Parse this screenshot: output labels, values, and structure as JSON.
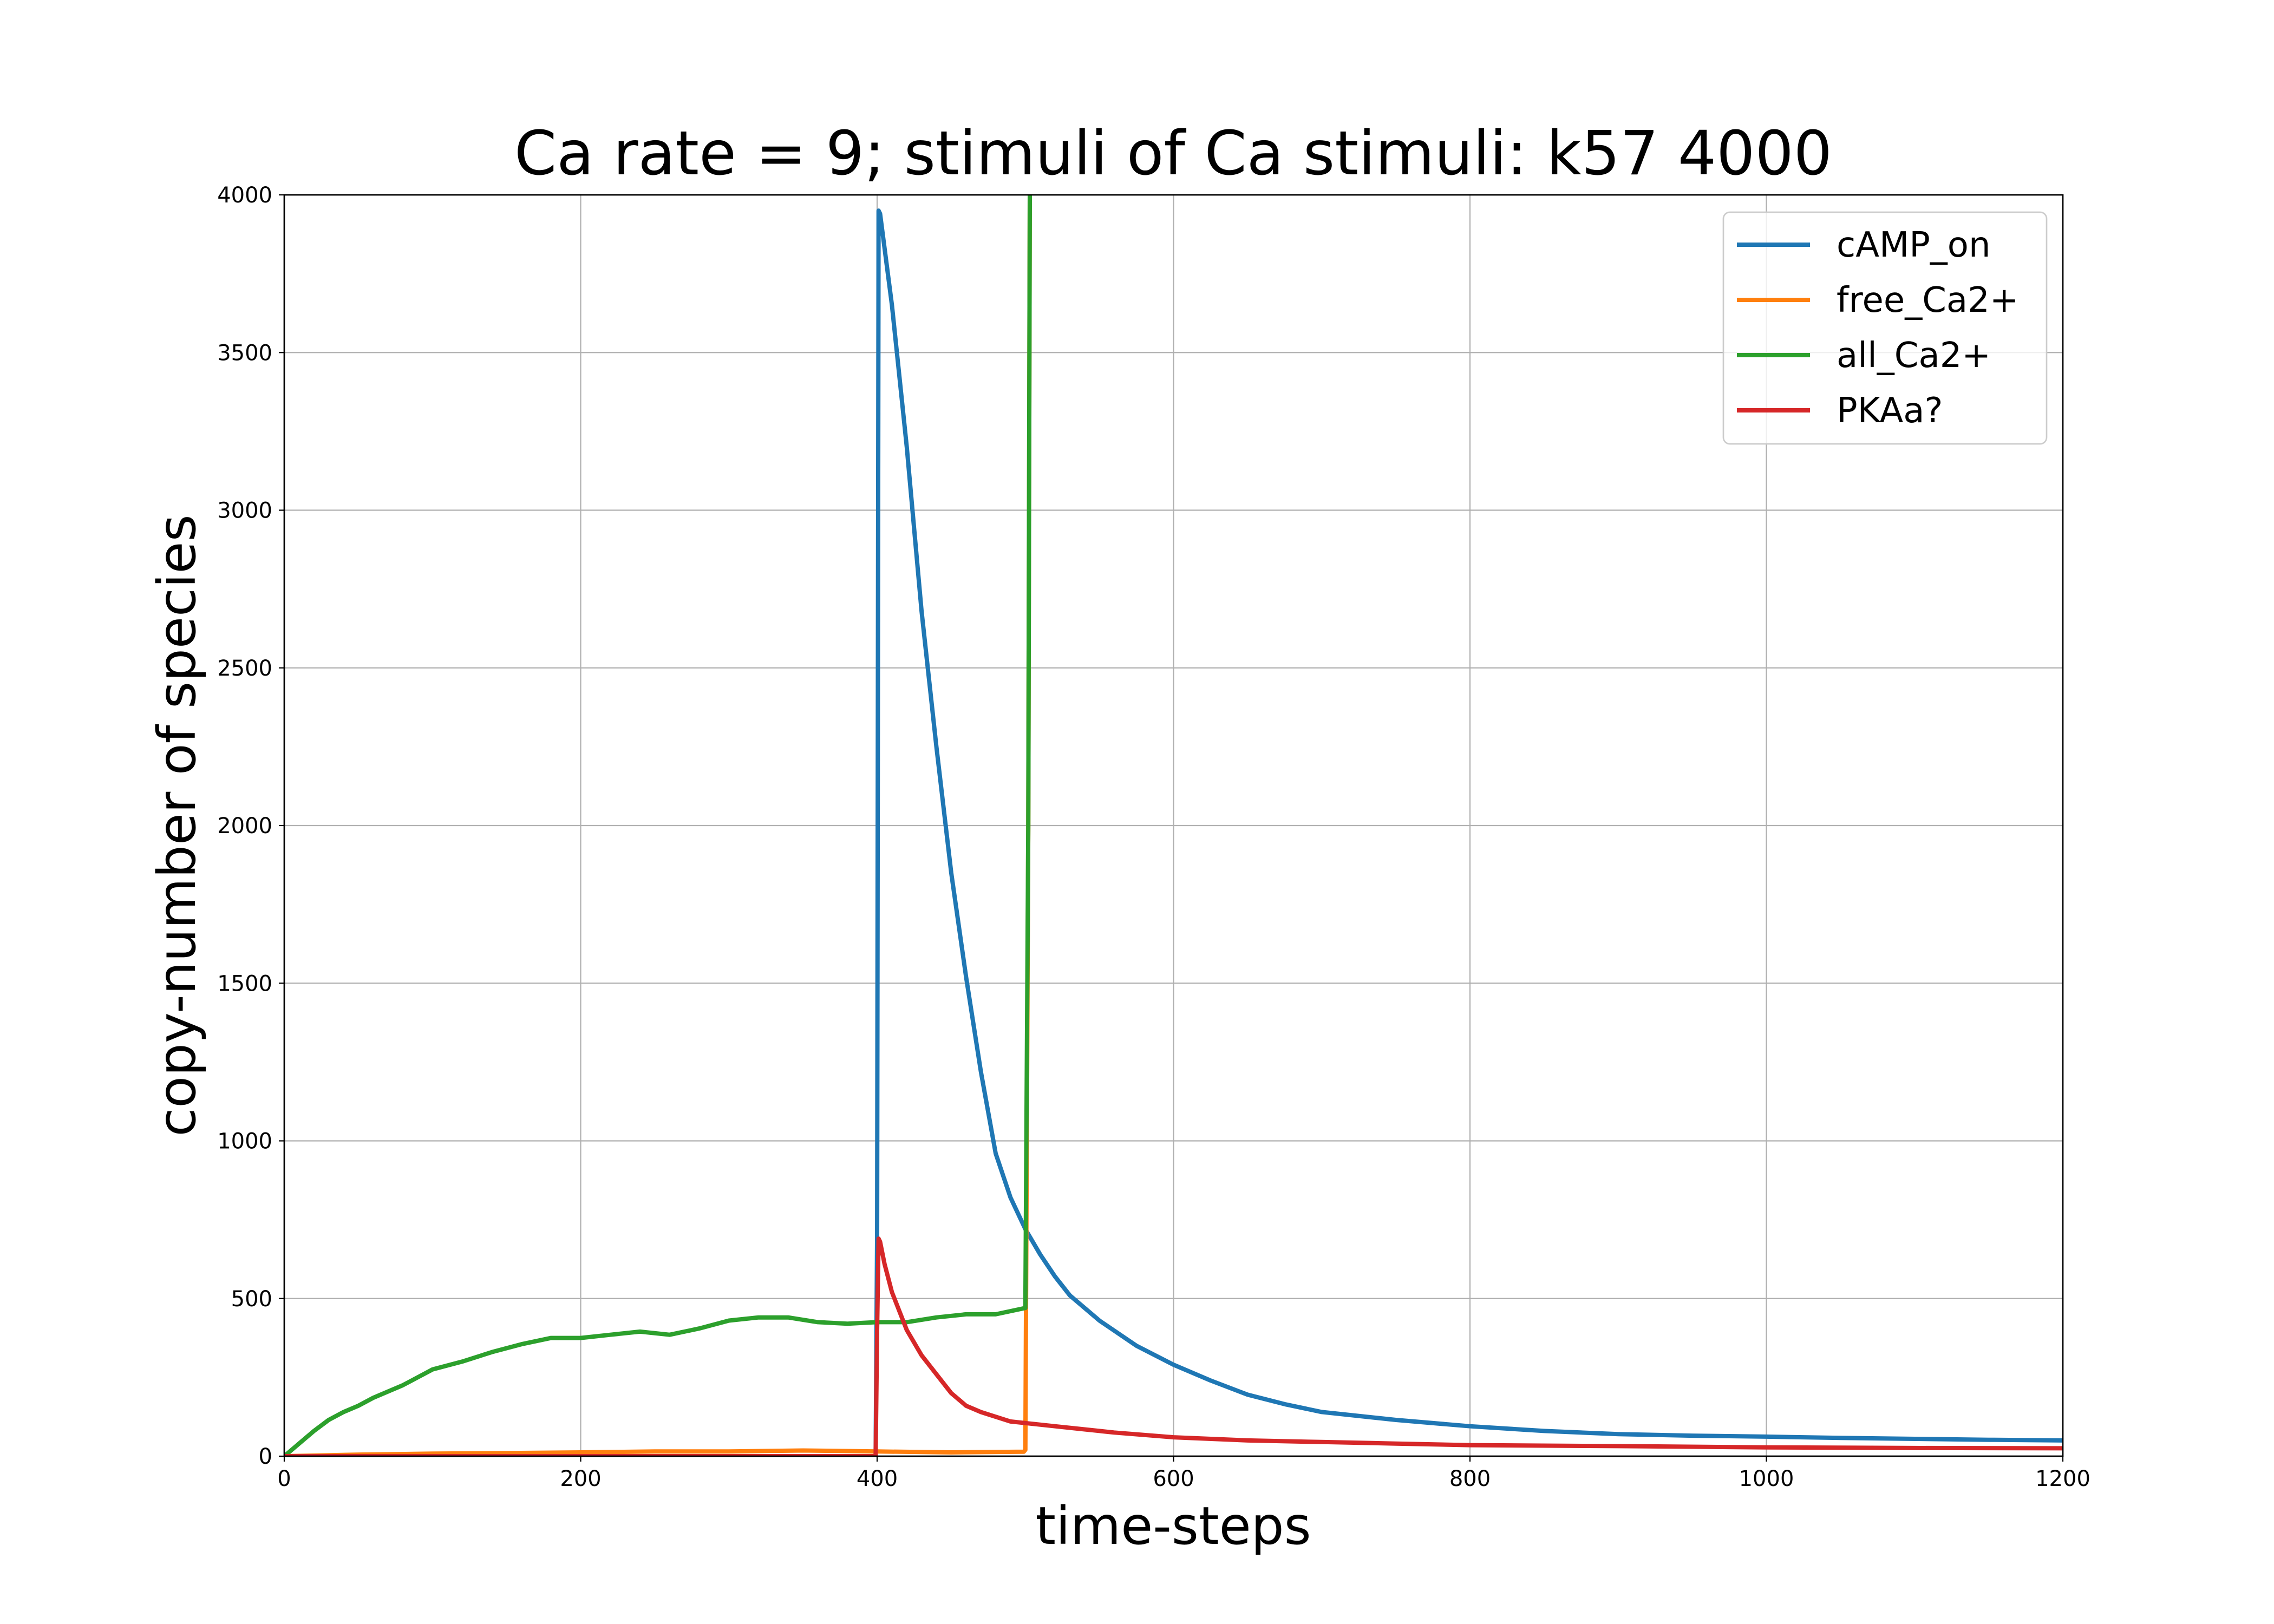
{
  "chart_data": {
    "type": "line",
    "title": "Ca rate = 9; stimuli of Ca stimuli: k57 4000",
    "xlabel": "time-steps",
    "ylabel": "copy-number of species",
    "xlim": [
      0,
      1200
    ],
    "ylim": [
      0,
      4000
    ],
    "xticks": [
      0,
      200,
      400,
      600,
      800,
      1000,
      1200
    ],
    "yticks": [
      0,
      500,
      1000,
      1500,
      2000,
      2500,
      3000,
      3500,
      4000
    ],
    "grid": true,
    "legend_position": "top-right",
    "series": [
      {
        "name": "cAMP_on",
        "color": "#1f77b4",
        "x": [
          0,
          399,
          400,
          401,
          402,
          410,
          420,
          430,
          440,
          450,
          460,
          470,
          480,
          490,
          500,
          510,
          520,
          530,
          550,
          575,
          600,
          625,
          650,
          675,
          700,
          750,
          800,
          850,
          900,
          950,
          1000,
          1050,
          1100,
          1150,
          1200
        ],
        "y": [
          0,
          0,
          700,
          3950,
          3940,
          3650,
          3200,
          2680,
          2250,
          1850,
          1520,
          1220,
          960,
          820,
          720,
          640,
          570,
          510,
          430,
          350,
          290,
          240,
          195,
          165,
          140,
          115,
          95,
          80,
          70,
          65,
          62,
          58,
          55,
          52,
          50
        ]
      },
      {
        "name": "free_Ca2+",
        "color": "#ff7f0e",
        "x": [
          0,
          50,
          100,
          150,
          200,
          250,
          300,
          350,
          400,
          450,
          499,
          500,
          502,
          503
        ],
        "y": [
          0,
          5,
          8,
          10,
          12,
          15,
          15,
          18,
          15,
          12,
          14,
          20,
          2000,
          4000
        ]
      },
      {
        "name": "all_Ca2+",
        "color": "#2ca02c",
        "x": [
          0,
          10,
          20,
          30,
          40,
          50,
          60,
          70,
          80,
          90,
          100,
          120,
          140,
          160,
          180,
          200,
          220,
          240,
          260,
          280,
          300,
          320,
          340,
          360,
          380,
          400,
          420,
          440,
          460,
          480,
          500,
          502,
          503
        ],
        "y": [
          0,
          40,
          80,
          115,
          140,
          160,
          185,
          205,
          225,
          250,
          275,
          300,
          330,
          355,
          375,
          375,
          385,
          395,
          385,
          405,
          430,
          440,
          440,
          425,
          420,
          425,
          425,
          440,
          450,
          450,
          470,
          2000,
          4000
        ]
      },
      {
        "name": "PKAa?",
        "color": "#d62728",
        "x": [
          0,
          399,
          400,
          401,
          402,
          405,
          410,
          420,
          430,
          440,
          450,
          460,
          470,
          480,
          490,
          500,
          520,
          540,
          560,
          600,
          650,
          700,
          750,
          800,
          900,
          1000,
          1100,
          1200
        ],
        "y": [
          0,
          0,
          400,
          690,
          680,
          610,
          520,
          400,
          320,
          260,
          200,
          160,
          140,
          125,
          110,
          105,
          95,
          85,
          75,
          60,
          50,
          45,
          40,
          35,
          32,
          28,
          26,
          25
        ]
      }
    ]
  }
}
